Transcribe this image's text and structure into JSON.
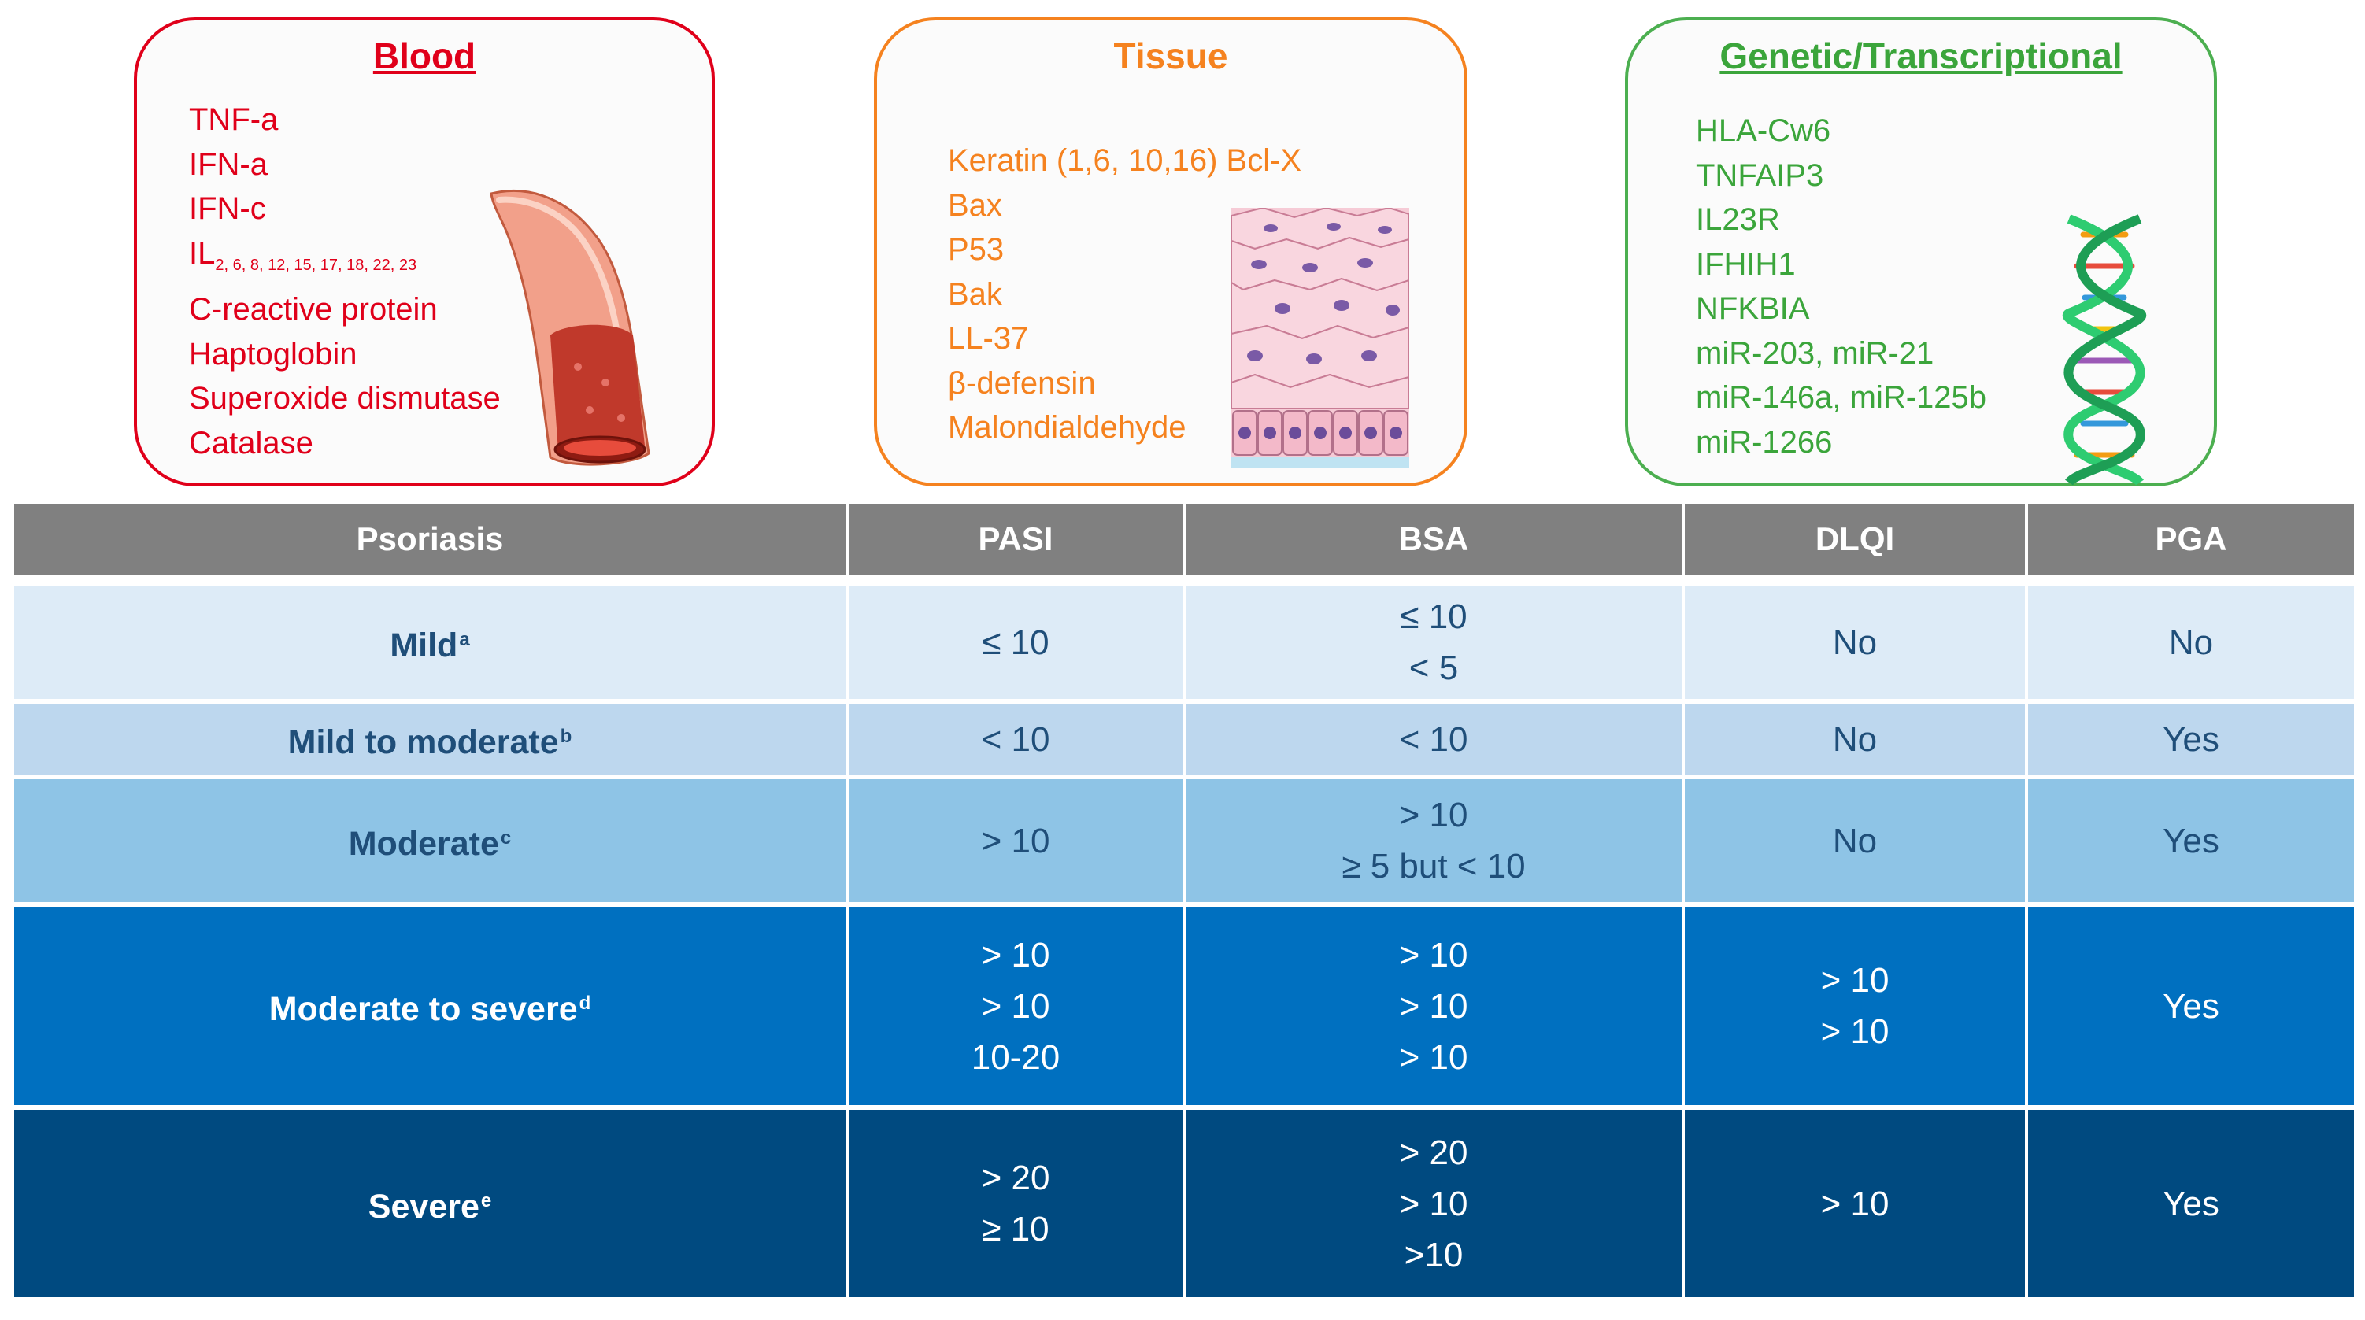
{
  "panels": {
    "blood": {
      "title": "Blood",
      "color": "#e0001a",
      "icon": "blood-vessel-icon",
      "markers": [
        {
          "text": "TNF-a"
        },
        {
          "text": "IFN-a"
        },
        {
          "text": "IFN-c"
        },
        {
          "text": "IL",
          "sub": "2, 6, 8, 12, 15, 17, 18, 22, 23"
        },
        {
          "text": "C-reactive protein"
        },
        {
          "text": "Haptoglobin"
        },
        {
          "text": "Superoxide dismutase"
        },
        {
          "text": "Catalase"
        }
      ]
    },
    "tissue": {
      "title": "Tissue",
      "color": "#f5821f",
      "icon": "skin-tissue-icon",
      "markers": [
        {
          "text": "Keratin (1,6, 10,16) Bcl-X"
        },
        {
          "text": "Bax"
        },
        {
          "text": "P53"
        },
        {
          "text": "Bak"
        },
        {
          "text": "LL-37"
        },
        {
          "text": "β-defensin"
        },
        {
          "text": "Malondialdehyde"
        }
      ]
    },
    "genetic": {
      "title": "Genetic/Transcriptional",
      "color": "#3ba53b",
      "icon": "dna-helix-icon",
      "markers": [
        {
          "text": "HLA-Cw6"
        },
        {
          "text": "TNFAIP3"
        },
        {
          "text": "IL23R"
        },
        {
          "text": "IFHIH1"
        },
        {
          "text": "NFKBIA"
        },
        {
          "text": "miR-203, miR-21"
        },
        {
          "text": "miR-146a, miR-125b"
        },
        {
          "text": "miR-1266"
        }
      ]
    }
  },
  "table": {
    "headers": [
      "Psoriasis",
      "PASI",
      "BSA",
      "DLQI",
      "PGA"
    ],
    "rows": [
      {
        "severity": "Mild",
        "note": "a",
        "pasi": [
          "≤ 10"
        ],
        "bsa": [
          "≤ 10",
          "< 5"
        ],
        "dlqi": [
          "No"
        ],
        "pga": [
          "No"
        ]
      },
      {
        "severity": "Mild to moderate",
        "note": "b",
        "pasi": [
          "< 10"
        ],
        "bsa": [
          "< 10"
        ],
        "dlqi": [
          "No"
        ],
        "pga": [
          "Yes"
        ]
      },
      {
        "severity": "Moderate",
        "note": "c",
        "pasi": [
          "> 10"
        ],
        "bsa": [
          "> 10",
          "≥ 5 but < 10"
        ],
        "dlqi": [
          "No"
        ],
        "pga": [
          "Yes"
        ]
      },
      {
        "severity": "Moderate to severe",
        "note": "d",
        "pasi": [
          "> 10",
          "> 10",
          "10-20"
        ],
        "bsa": [
          "> 10",
          "> 10",
          "> 10"
        ],
        "dlqi": [
          "> 10",
          "> 10"
        ],
        "pga": [
          "Yes"
        ]
      },
      {
        "severity": "Severe",
        "note": "e",
        "pasi": [
          "> 20",
          "≥ 10"
        ],
        "bsa": [
          "> 20",
          "> 10",
          ">10"
        ],
        "dlqi": [
          "> 10"
        ],
        "pga": [
          "Yes"
        ]
      }
    ]
  },
  "colors": {
    "header_bg": "#808080",
    "row_bg": [
      "#ddebf7",
      "#bdd7ee",
      "#8ec4e6",
      "#0070c0",
      "#004a80"
    ]
  }
}
